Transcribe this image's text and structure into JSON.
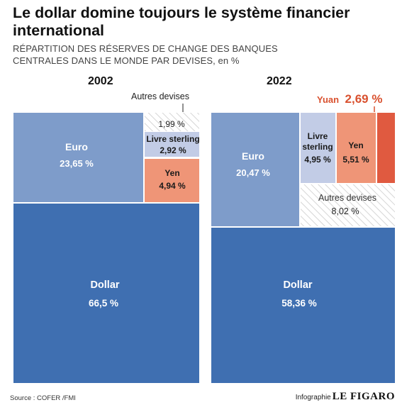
{
  "header": {
    "title": "Le dollar domine toujours le système financier international",
    "subtitle_line1": "RÉPARTITION DES RÉSERVES DE CHANGE DES BANQUES",
    "subtitle_line2": "CENTRALES DANS LE MONDE PAR DEVISES, en %"
  },
  "colors": {
    "dollar": "#3f6fb1",
    "euro": "#7e9cca",
    "livre": "#c2cce6",
    "yen": "#ef9577",
    "yuan": "#e05a40",
    "autres_stroke": "#cccccc",
    "yuan_label": "#d9512f"
  },
  "chart_data": {
    "type": "treemap",
    "title": "Le dollar domine toujours le système financier international",
    "unit": "%",
    "panels": [
      {
        "year": "2002",
        "items": [
          {
            "key": "dollar",
            "name": "Dollar",
            "value": 66.5,
            "label": "66,5 %"
          },
          {
            "key": "euro",
            "name": "Euro",
            "value": 23.65,
            "label": "23,65 %"
          },
          {
            "key": "livre",
            "name": "Livre sterling",
            "value": 2.92,
            "label": "2,92 %"
          },
          {
            "key": "yen",
            "name": "Yen",
            "value": 4.94,
            "label": "4,94 %"
          },
          {
            "key": "autres",
            "name": "Autres devises",
            "value": 1.99,
            "label": "1,99 %"
          }
        ]
      },
      {
        "year": "2022",
        "items": [
          {
            "key": "dollar",
            "name": "Dollar",
            "value": 58.36,
            "label": "58,36 %"
          },
          {
            "key": "euro",
            "name": "Euro",
            "value": 20.47,
            "label": "20,47 %"
          },
          {
            "key": "livre",
            "name": "Livre sterling",
            "value": 4.95,
            "label": "4,95 %"
          },
          {
            "key": "yen",
            "name": "Yen",
            "value": 5.51,
            "label": "5,51 %"
          },
          {
            "key": "yuan",
            "name": "Yuan",
            "value": 2.69,
            "label": "2,69 %"
          },
          {
            "key": "autres",
            "name": "Autres devises",
            "value": 8.02,
            "label": "8,02 %"
          }
        ]
      }
    ]
  },
  "labels": {
    "dollar": "Dollar",
    "euro": "Euro",
    "livre_single": "Livre sterling",
    "livre_line1": "Livre",
    "livre_line2": "sterling",
    "yen": "Yen",
    "autres": "Autres devises",
    "yuan_name": "Yuan",
    "p2002": {
      "dollar": "66,5 %",
      "euro": "23,65 %",
      "livre": "2,92 %",
      "yen": "4,94 %",
      "autres": "1,99 %"
    },
    "p2022": {
      "dollar": "58,36 %",
      "euro": "20,47 %",
      "livre": "4,95 %",
      "yen": "5,51 %",
      "yuan": "2,69 %",
      "autres": "8,02 %"
    }
  },
  "footer": {
    "source": "Source : COFER /FMI",
    "credit": "Infographie",
    "logo": "LE FIGARO"
  }
}
